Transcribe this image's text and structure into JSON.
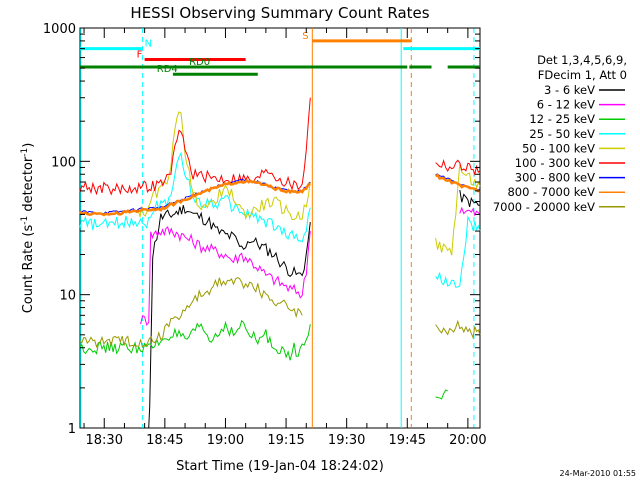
{
  "chart_data": {
    "type": "line",
    "title": "HESSI Observing Summary Count Rates",
    "xlabel": "Start Time (19-Jan-04 18:24:02)",
    "ylabel_main": "Count Rate (s",
    "ylabel_sup1": "-1",
    "ylabel_mid": " detector",
    "ylabel_sup2": "-1",
    "ylabel_end": ")",
    "y_scale": "log",
    "ylim": [
      1,
      1000
    ],
    "xlim_minutes": [
      0,
      99
    ],
    "y_ticks": [
      {
        "value": 1,
        "label": "1"
      },
      {
        "value": 10,
        "label": "10"
      },
      {
        "value": 100,
        "label": "100"
      },
      {
        "value": 1000,
        "label": "1000"
      }
    ],
    "x_ticks": [
      {
        "minute": 6,
        "label": "18:30"
      },
      {
        "minute": 21,
        "label": "18:45"
      },
      {
        "minute": 36,
        "label": "19:00"
      },
      {
        "minute": 51,
        "label": "19:15"
      },
      {
        "minute": 66,
        "label": "19:30"
      },
      {
        "minute": 81,
        "label": "19:45"
      },
      {
        "minute": 96,
        "label": "20:00"
      }
    ],
    "legend_header": [
      "Det 1,3,4,5,6,9,",
      "FDecim 1, Att 0"
    ],
    "legend_position": "right",
    "series": [
      {
        "name": "3 - 6 keV",
        "color": "#000000",
        "points": [
          [
            17,
            0.5
          ],
          [
            17.5,
            3.5
          ],
          [
            18,
            20
          ],
          [
            20,
            38
          ],
          [
            23,
            40
          ],
          [
            26,
            45
          ],
          [
            28,
            40
          ],
          [
            30,
            38
          ],
          [
            32,
            35
          ],
          [
            34,
            30
          ],
          [
            36,
            28
          ],
          [
            38,
            27
          ],
          [
            40,
            22
          ],
          [
            42,
            26
          ],
          [
            44,
            24
          ],
          [
            46,
            22
          ],
          [
            48,
            20
          ],
          [
            50,
            17
          ],
          [
            52,
            15
          ],
          [
            54,
            14
          ],
          [
            55,
            14
          ],
          [
            56,
            20
          ],
          [
            57,
            35
          ]
        ],
        "points2": [
          [
            94,
            55
          ],
          [
            96,
            50
          ],
          [
            99,
            47
          ]
        ]
      },
      {
        "name": "6 - 12 keV",
        "color": "#ff00ff",
        "points": [
          [
            15,
            6.5
          ],
          [
            17,
            6.5
          ],
          [
            17.5,
            28
          ],
          [
            20,
            30
          ],
          [
            23,
            30
          ],
          [
            26,
            27
          ],
          [
            28,
            25
          ],
          [
            30,
            23
          ],
          [
            32,
            22
          ],
          [
            34,
            21
          ],
          [
            36,
            20
          ],
          [
            38,
            18
          ],
          [
            40,
            20
          ],
          [
            42,
            18
          ],
          [
            44,
            16
          ],
          [
            46,
            14
          ],
          [
            48,
            13
          ],
          [
            50,
            12
          ],
          [
            52,
            11
          ],
          [
            54,
            10.5
          ],
          [
            55,
            10
          ],
          [
            56,
            15
          ],
          [
            57,
            30
          ]
        ],
        "points2": [
          [
            94,
            45
          ],
          [
            96,
            42
          ],
          [
            99,
            40
          ]
        ]
      },
      {
        "name": "12 - 25 keV",
        "color": "#00cc00",
        "points": [
          [
            0,
            4
          ],
          [
            5,
            4
          ],
          [
            10,
            4
          ],
          [
            15,
            4
          ],
          [
            17,
            4
          ],
          [
            18,
            4
          ],
          [
            20,
            4.5
          ],
          [
            22,
            5
          ],
          [
            24,
            5
          ],
          [
            26,
            4.5
          ],
          [
            28,
            5
          ],
          [
            30,
            6
          ],
          [
            32,
            4.5
          ],
          [
            34,
            5
          ],
          [
            36,
            6
          ],
          [
            38,
            5
          ],
          [
            40,
            6
          ],
          [
            42,
            5
          ],
          [
            44,
            4.5
          ],
          [
            46,
            5
          ],
          [
            48,
            4
          ],
          [
            50,
            4
          ],
          [
            52,
            3.2
          ],
          [
            53,
            4
          ],
          [
            54,
            3.5
          ],
          [
            55,
            4
          ],
          [
            56,
            5
          ],
          [
            57,
            6
          ]
        ],
        "points2": [
          [
            88,
            1.8
          ],
          [
            90,
            1.8
          ],
          [
            91,
            1.9
          ]
        ]
      },
      {
        "name": "25 - 50 keV",
        "color": "#00ffff",
        "points": [
          [
            0,
            35
          ],
          [
            5,
            33
          ],
          [
            10,
            35
          ],
          [
            15,
            36
          ],
          [
            17,
            35
          ],
          [
            18,
            45
          ],
          [
            20,
            47
          ],
          [
            22,
            52
          ],
          [
            24,
            90
          ],
          [
            25,
            110
          ],
          [
            26,
            80
          ],
          [
            28,
            55
          ],
          [
            30,
            48
          ],
          [
            32,
            50
          ],
          [
            34,
            48
          ],
          [
            36,
            52
          ],
          [
            38,
            45
          ],
          [
            40,
            42
          ],
          [
            42,
            40
          ],
          [
            44,
            38
          ],
          [
            46,
            35
          ],
          [
            48,
            33
          ],
          [
            50,
            30
          ],
          [
            52,
            28
          ],
          [
            54,
            27
          ],
          [
            55,
            26
          ],
          [
            56,
            30
          ],
          [
            57,
            45
          ]
        ],
        "points2": [
          [
            88,
            14
          ],
          [
            90,
            13
          ],
          [
            92,
            12
          ],
          [
            94,
            11
          ],
          [
            96,
            35
          ],
          [
            99,
            30
          ]
        ]
      },
      {
        "name": "50 - 100 keV",
        "color": "#cccc00",
        "points": [
          [
            14,
            42
          ],
          [
            17,
            42
          ],
          [
            18,
            55
          ],
          [
            20,
            60
          ],
          [
            22,
            80
          ],
          [
            24,
            200
          ],
          [
            25,
            250
          ],
          [
            26,
            120
          ],
          [
            28,
            55
          ],
          [
            30,
            48
          ],
          [
            32,
            45
          ],
          [
            34,
            55
          ],
          [
            36,
            60
          ],
          [
            38,
            55
          ],
          [
            40,
            42
          ],
          [
            42,
            40
          ],
          [
            44,
            45
          ],
          [
            46,
            48
          ],
          [
            48,
            50
          ],
          [
            50,
            45
          ],
          [
            52,
            40
          ],
          [
            54,
            38
          ],
          [
            55,
            40
          ],
          [
            56,
            50
          ],
          [
            57,
            70
          ]
        ],
        "points2": [
          [
            88,
            24
          ],
          [
            90,
            22
          ],
          [
            92,
            21
          ],
          [
            94,
            90
          ],
          [
            96,
            75
          ],
          [
            99,
            65
          ]
        ]
      },
      {
        "name": "100 - 300 keV",
        "color": "#ff0000",
        "points": [
          [
            0,
            65
          ],
          [
            5,
            63
          ],
          [
            10,
            62
          ],
          [
            15,
            64
          ],
          [
            18,
            65
          ],
          [
            20,
            68
          ],
          [
            22,
            75
          ],
          [
            24,
            140
          ],
          [
            25,
            180
          ],
          [
            26,
            120
          ],
          [
            28,
            80
          ],
          [
            30,
            78
          ],
          [
            32,
            76
          ],
          [
            34,
            74
          ],
          [
            36,
            75
          ],
          [
            38,
            74
          ],
          [
            40,
            75
          ],
          [
            42,
            72
          ],
          [
            44,
            72
          ],
          [
            46,
            90
          ],
          [
            48,
            80
          ],
          [
            50,
            72
          ],
          [
            52,
            68
          ],
          [
            54,
            65
          ],
          [
            55,
            70
          ],
          [
            56,
            120
          ],
          [
            57,
            300
          ]
        ],
        "points2": [
          [
            88,
            100
          ],
          [
            90,
            95
          ],
          [
            92,
            90
          ],
          [
            94,
            95
          ],
          [
            96,
            90
          ],
          [
            99,
            85
          ]
        ]
      },
      {
        "name": "300 - 800 keV",
        "color": "#0000ff",
        "points": [
          [
            0,
            42
          ],
          [
            5,
            41
          ],
          [
            10,
            42
          ],
          [
            15,
            44
          ],
          [
            20,
            45
          ],
          [
            24,
            50
          ],
          [
            28,
            56
          ],
          [
            32,
            62
          ],
          [
            36,
            68
          ],
          [
            40,
            72
          ],
          [
            44,
            70
          ],
          [
            48,
            64
          ],
          [
            52,
            60
          ],
          [
            55,
            60
          ],
          [
            57,
            70
          ]
        ],
        "points2": [
          [
            88,
            80
          ],
          [
            90,
            76
          ],
          [
            92,
            72
          ],
          [
            94,
            68
          ],
          [
            96,
            65
          ],
          [
            99,
            62
          ]
        ]
      },
      {
        "name": "800 - 7000 keV",
        "color": "#ff8000",
        "points": [
          [
            0,
            41
          ],
          [
            5,
            40
          ],
          [
            10,
            41
          ],
          [
            15,
            43
          ],
          [
            20,
            44
          ],
          [
            24,
            49
          ],
          [
            28,
            55
          ],
          [
            32,
            61
          ],
          [
            36,
            67
          ],
          [
            40,
            71
          ],
          [
            44,
            69
          ],
          [
            48,
            63
          ],
          [
            52,
            59
          ],
          [
            55,
            59
          ],
          [
            57,
            68
          ]
        ],
        "points2": [
          [
            88,
            78
          ],
          [
            90,
            74
          ],
          [
            92,
            70
          ],
          [
            94,
            66
          ],
          [
            96,
            63
          ],
          [
            99,
            60
          ]
        ]
      },
      {
        "name": "7000 - 20000 keV",
        "color": "#999900",
        "points": [
          [
            0,
            4.5
          ],
          [
            5,
            4.5
          ],
          [
            10,
            4.5
          ],
          [
            15,
            4.5
          ],
          [
            18,
            4.5
          ],
          [
            20,
            5
          ],
          [
            22,
            6
          ],
          [
            24,
            7
          ],
          [
            26,
            7.5
          ],
          [
            28,
            9
          ],
          [
            30,
            10
          ],
          [
            32,
            11
          ],
          [
            34,
            12
          ],
          [
            36,
            12.5
          ],
          [
            38,
            12.5
          ],
          [
            40,
            12.5
          ],
          [
            42,
            12
          ],
          [
            44,
            11
          ],
          [
            46,
            10
          ],
          [
            48,
            9
          ],
          [
            50,
            8.5
          ],
          [
            52,
            8
          ],
          [
            54,
            7.5
          ],
          [
            55,
            7
          ]
        ],
        "points2": [
          [
            88,
            6
          ],
          [
            90,
            5.5
          ],
          [
            92,
            5
          ],
          [
            94,
            6
          ],
          [
            96,
            5.5
          ],
          [
            99,
            5
          ]
        ]
      }
    ],
    "flags": [
      {
        "label": "N",
        "color": "#00ffff",
        "y_value": 700,
        "segments": [
          [
            0,
            15.5
          ],
          [
            80,
            99
          ]
        ],
        "label_minute": 16
      },
      {
        "label": "S",
        "color": "#ff8000",
        "y_value": 800,
        "segments": [
          [
            57.5,
            82
          ]
        ],
        "label_minute": 55
      },
      {
        "label": "F",
        "color": "#ff0000",
        "y_value": 580,
        "segments": [
          [
            16,
            41
          ]
        ],
        "label_minute": 14
      },
      {
        "label": "RD0",
        "color": "#008000",
        "y_value": 510,
        "segments": [
          [
            0,
            81
          ],
          [
            81.5,
            87
          ],
          [
            91,
            99
          ]
        ],
        "label_minute": 27
      },
      {
        "label": "RD4",
        "color": "#008000",
        "y_value": 450,
        "segments": [
          [
            23,
            44
          ]
        ],
        "label_minute": 19
      }
    ],
    "vertical_lines": [
      {
        "minute": 0.2,
        "color": "#00ffff",
        "style": "solid"
      },
      {
        "minute": 15.5,
        "color": "#00ffff",
        "style": "dashed"
      },
      {
        "minute": 57.5,
        "color": "#ff8000",
        "style": "solid"
      },
      {
        "minute": 79.5,
        "color": "#00ffff",
        "style": "solid"
      },
      {
        "minute": 82,
        "color": "#ff8000",
        "style": "dashed"
      },
      {
        "minute": 97.5,
        "color": "#00ffff",
        "style": "dashed"
      }
    ],
    "footer_timestamp": "24-Mar-2010 01:55"
  }
}
